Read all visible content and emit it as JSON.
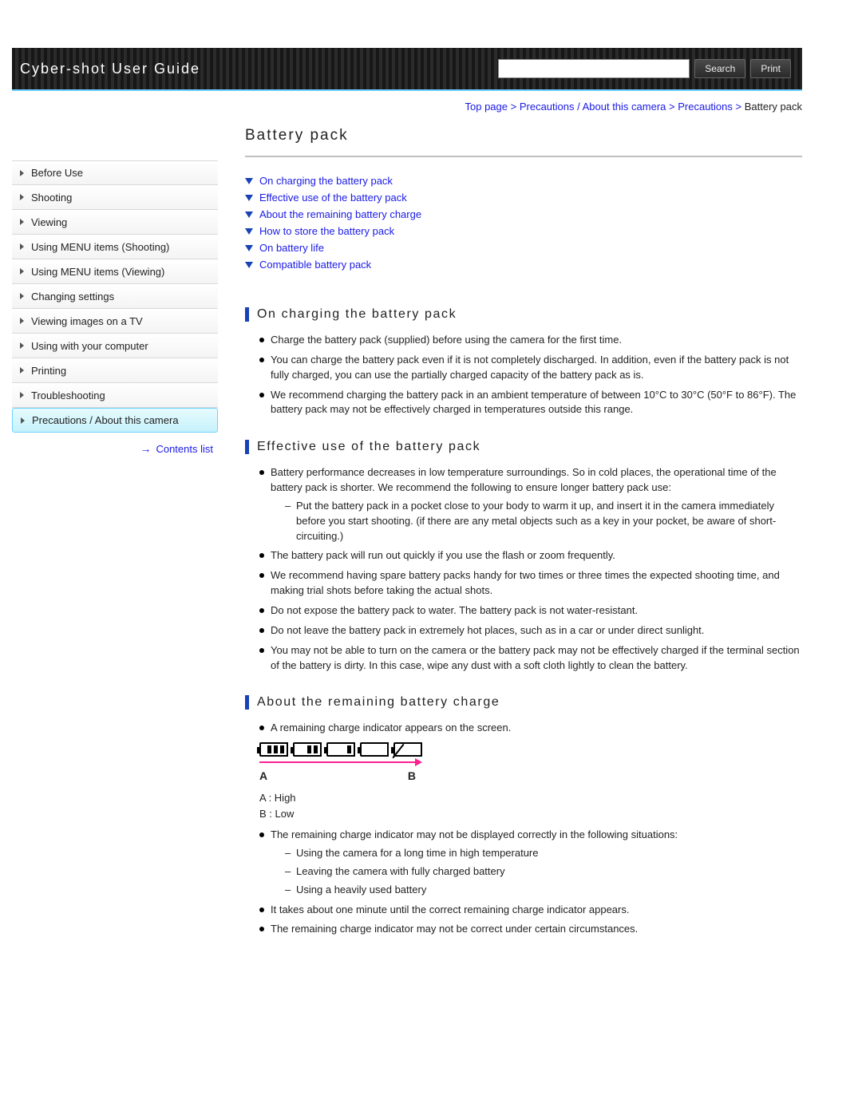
{
  "header": {
    "title": "Cyber-shot User Guide",
    "search_placeholder": "",
    "search_button": "Search",
    "print_button": "Print"
  },
  "breadcrumb": {
    "items": [
      "Top page",
      "Precautions / About this camera",
      "Precautions"
    ],
    "current": "Battery pack",
    "link_color": "#1a1ae6"
  },
  "sidebar": {
    "items": [
      {
        "label": "Before Use"
      },
      {
        "label": "Shooting"
      },
      {
        "label": "Viewing"
      },
      {
        "label": "Using MENU items (Shooting)"
      },
      {
        "label": "Using MENU items (Viewing)"
      },
      {
        "label": "Changing settings"
      },
      {
        "label": "Viewing images on a TV"
      },
      {
        "label": "Using with your computer"
      },
      {
        "label": "Printing"
      },
      {
        "label": "Troubleshooting"
      },
      {
        "label": "Precautions / About this camera",
        "active": true
      }
    ],
    "contents_link": "Contents list"
  },
  "page": {
    "title": "Battery pack",
    "toc": [
      "On charging the battery pack",
      "Effective use of the battery pack",
      "About the remaining battery charge",
      "How to store the battery pack",
      "On battery life",
      "Compatible battery pack"
    ],
    "sections": {
      "s1": {
        "title": "On charging the battery pack",
        "bullets": [
          {
            "text": "Charge the battery pack (supplied) before using the camera for the first time."
          },
          {
            "text": "You can charge the battery pack even if it is not completely discharged. In addition, even if the battery pack is not fully charged, you can use the partially charged capacity of the battery pack as is."
          },
          {
            "text": "We recommend charging the battery pack in an ambient temperature of between 10°C to 30°C (50°F to 86°F). The battery pack may not be effectively charged in temperatures outside this range."
          }
        ]
      },
      "s2": {
        "title": "Effective use of the battery pack",
        "bullets": [
          {
            "text": "Battery performance decreases in low temperature surroundings. So in cold places, the operational time of the battery pack is shorter. We recommend the following to ensure longer battery pack use:",
            "sub": [
              "Put the battery pack in a pocket close to your body to warm it up, and insert it in the camera immediately before you start shooting.\n(if there are any metal objects such as a key in your pocket, be aware of short-circuiting.)"
            ]
          },
          {
            "text": "The battery pack will run out quickly if you use the flash or zoom frequently."
          },
          {
            "text": "We recommend having spare battery packs handy for two times or three times the expected shooting time, and making trial shots before taking the actual shots."
          },
          {
            "text": "Do not expose the battery pack to water. The battery pack is not water-resistant."
          },
          {
            "text": "Do not leave the battery pack in extremely hot places, such as in a car or under direct sunlight."
          },
          {
            "text": "You may not be able to turn on the camera or the battery pack may not be effectively charged if the terminal section of the battery is dirty. In this case, wipe any dust with a soft cloth lightly to clean the battery."
          }
        ]
      },
      "s3": {
        "title": "About the remaining battery charge",
        "intro": "A remaining charge indicator appears on the screen.",
        "gauge": {
          "levels": [
            3,
            2,
            1,
            0,
            -1
          ],
          "arrow_color": "#ff1f8f",
          "label_a": "A",
          "label_b": "B",
          "legend_a": "A : High",
          "legend_b": "B : Low"
        },
        "bullets": [
          {
            "text": "The remaining charge indicator may not be displayed correctly in the following situations:",
            "sub": [
              "Using the camera for a long time in high temperature",
              "Leaving the camera with fully charged battery",
              "Using a heavily used battery"
            ]
          },
          {
            "text": "It takes about one minute until the correct remaining charge indicator appears."
          },
          {
            "text": "The remaining charge indicator may not be correct under certain circumstances."
          }
        ]
      }
    }
  },
  "style": {
    "accent_color": "#1842b5",
    "link_color": "#1a1ae6",
    "sidebar_active_bg": "#d6f6fc",
    "header_bg": "#222222"
  }
}
